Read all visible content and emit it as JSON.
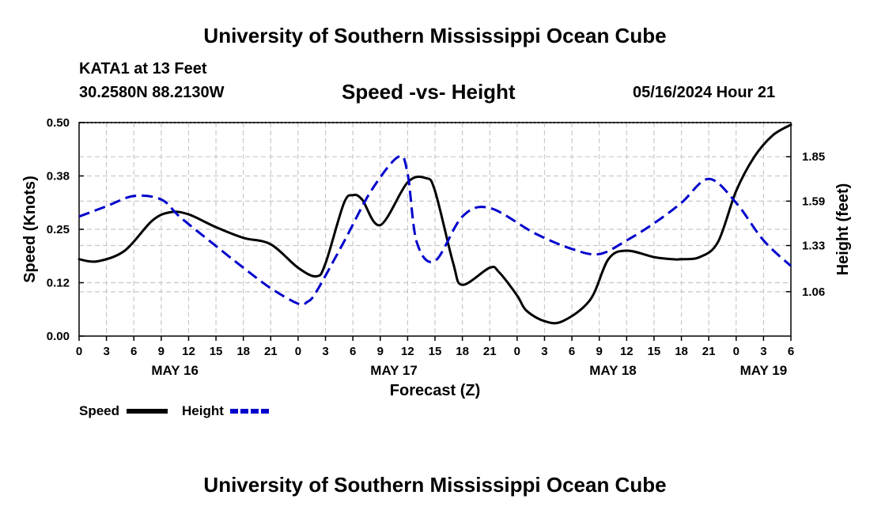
{
  "header": {
    "title": "University of Southern Mississippi Ocean Cube",
    "station": "KATA1 at 13 Feet",
    "coordinates": "30.2580N  88.2130W",
    "subtitle": "Speed -vs- Height",
    "datetime": "05/16/2024 Hour 21"
  },
  "footer": {
    "title": "University of Southern Mississippi Ocean Cube"
  },
  "colors": {
    "speed": "#000000",
    "height": "#0000cc",
    "grid": "#c8c8c8"
  },
  "chart_data": {
    "type": "line",
    "title": "Speed -vs- Height",
    "xlabel": "Forecast (Z)",
    "ylabel": "Speed (Knots)",
    "y2label": "Height (feet)",
    "x_unit": "hours from May 16 00Z",
    "xlim": [
      0,
      78
    ],
    "ylim": [
      0,
      0.5
    ],
    "y2lim": [
      0.8,
      2.05
    ],
    "yticks": [
      "0.00",
      "0.12",
      "0.25",
      "0.38",
      "0.50"
    ],
    "yticks_values": [
      0,
      0.125,
      0.25,
      0.375,
      0.5
    ],
    "y2ticks": [
      "1.06",
      "1.33",
      "1.59",
      "1.85"
    ],
    "y2ticks_values": [
      1.06,
      1.33,
      1.59,
      1.85
    ],
    "xtick_labels": [
      "0",
      "3",
      "6",
      "9",
      "12",
      "15",
      "18",
      "21",
      "0",
      "3",
      "6",
      "9",
      "12",
      "15",
      "18",
      "21",
      "0",
      "3",
      "6",
      "9",
      "12",
      "15",
      "18",
      "21",
      "0",
      "3",
      "6"
    ],
    "date_labels": [
      {
        "label": "MAY 16",
        "hour": 10.5
      },
      {
        "label": "MAY 17",
        "hour": 34.5
      },
      {
        "label": "MAY 18",
        "hour": 58.5
      },
      {
        "label": "MAY 19",
        "hour": 75
      }
    ],
    "series": [
      {
        "name": "Speed",
        "axis": "left",
        "style": "solid",
        "color": "#000000",
        "x": [
          0,
          2,
          5,
          8,
          10,
          12,
          15,
          18,
          21,
          24,
          26,
          27,
          29,
          30,
          31,
          33,
          36,
          38,
          39,
          41,
          42,
          45,
          46,
          48,
          49,
          51,
          53,
          56,
          58,
          60,
          63,
          65,
          66,
          68,
          70,
          72,
          74,
          76,
          78
        ],
        "y": [
          0.18,
          0.175,
          0.2,
          0.27,
          0.29,
          0.285,
          0.255,
          0.23,
          0.215,
          0.16,
          0.14,
          0.17,
          0.31,
          0.33,
          0.32,
          0.26,
          0.36,
          0.37,
          0.34,
          0.17,
          0.12,
          0.16,
          0.15,
          0.095,
          0.06,
          0.035,
          0.035,
          0.085,
          0.18,
          0.2,
          0.185,
          0.18,
          0.18,
          0.185,
          0.22,
          0.34,
          0.42,
          0.47,
          0.495
        ]
      },
      {
        "name": "Height",
        "axis": "right",
        "style": "dashed",
        "color": "#0000cc",
        "x": [
          0,
          3,
          6,
          9,
          11,
          14,
          18,
          21,
          24,
          25,
          26,
          29,
          32,
          35,
          36,
          37,
          39,
          42,
          45,
          50,
          54,
          57,
          60,
          63,
          66,
          69,
          72,
          75,
          78
        ],
        "y": [
          1.5,
          1.56,
          1.62,
          1.6,
          1.5,
          1.37,
          1.2,
          1.08,
          0.99,
          1.0,
          1.06,
          1.35,
          1.65,
          1.85,
          1.75,
          1.35,
          1.24,
          1.5,
          1.55,
          1.4,
          1.31,
          1.28,
          1.36,
          1.46,
          1.58,
          1.72,
          1.58,
          1.36,
          1.21
        ]
      }
    ],
    "legend": [
      {
        "label": "Speed",
        "style": "solid",
        "color": "#000000"
      },
      {
        "label": "Height",
        "style": "dashed",
        "color": "#0000cc"
      }
    ]
  }
}
